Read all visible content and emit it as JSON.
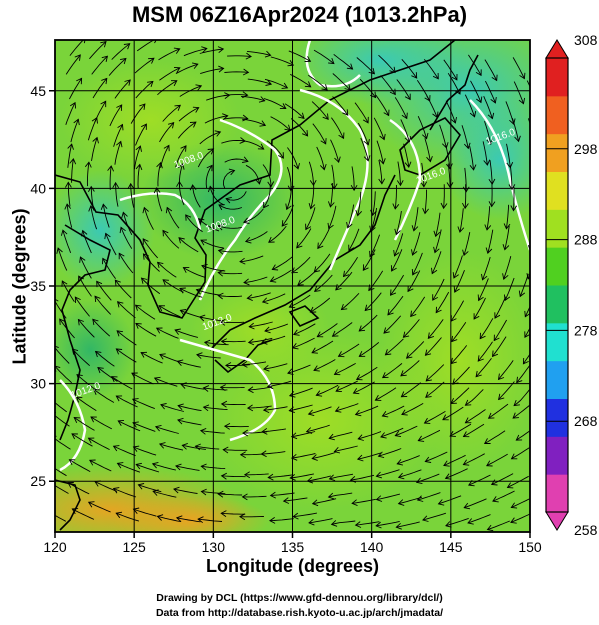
{
  "title": "MSM 06Z16Apr2024 (1013.2hPa)",
  "credits": {
    "line1": "Drawing by DCL (https://www.gfd-dennou.org/library/dcl/)",
    "line2": "Data from http://database.rish.kyoto-u.ac.jp/arch/jmadata/"
  },
  "chart_data": {
    "type": "heatmap",
    "xlabel": "Longitude (degrees)",
    "ylabel": "Latitude  (degrees)",
    "xlim": [
      120,
      150
    ],
    "ylim": [
      22.4,
      47.6
    ],
    "xticks": [
      120,
      125,
      130,
      135,
      140,
      145,
      150
    ],
    "yticks": [
      25,
      30,
      35,
      40,
      45
    ],
    "grid": true,
    "colorbar": {
      "min": 258,
      "max": 308,
      "ticks": [
        308,
        298,
        288,
        278,
        268,
        258
      ],
      "colors": [
        "#e040b0",
        "#8020c0",
        "#2030e0",
        "#20a0f0",
        "#20e0d0",
        "#20c060",
        "#50d020",
        "#a0e020",
        "#e0e020",
        "#f0a020",
        "#f06020",
        "#e02020"
      ]
    },
    "field_samples": [
      {
        "lon": 122,
        "lat": 24,
        "value": 300
      },
      {
        "lon": 128,
        "lat": 24,
        "value": 297
      },
      {
        "lon": 140,
        "lat": 25,
        "value": 293
      },
      {
        "lon": 148,
        "lat": 26,
        "value": 291
      },
      {
        "lon": 125,
        "lat": 30,
        "value": 290
      },
      {
        "lon": 135,
        "lat": 30,
        "value": 291
      },
      {
        "lon": 145,
        "lat": 30,
        "value": 291
      },
      {
        "lon": 122,
        "lat": 36,
        "value": 288
      },
      {
        "lon": 133,
        "lat": 35,
        "value": 291
      },
      {
        "lon": 145,
        "lat": 36,
        "value": 288
      },
      {
        "lon": 122,
        "lat": 40,
        "value": 285
      },
      {
        "lon": 130,
        "lat": 40,
        "value": 289
      },
      {
        "lon": 138,
        "lat": 41,
        "value": 287
      },
      {
        "lon": 146,
        "lat": 42,
        "value": 284
      },
      {
        "lon": 124,
        "lat": 46,
        "value": 287
      },
      {
        "lon": 135,
        "lat": 46,
        "value": 285
      },
      {
        "lon": 142,
        "lat": 46,
        "value": 282
      },
      {
        "lon": 148,
        "lat": 46,
        "value": 280
      }
    ],
    "isobar_labels": [
      {
        "lon": 128.5,
        "lat": 41.3,
        "text": "1008.0"
      },
      {
        "lon": 130.5,
        "lat": 38.0,
        "text": "1008.0"
      },
      {
        "lon": 130.3,
        "lat": 33.0,
        "text": "1012.0"
      },
      {
        "lon": 143.8,
        "lat": 40.5,
        "text": "1016.0"
      },
      {
        "lon": 148.2,
        "lat": 42.5,
        "text": "1016.0"
      },
      {
        "lon": 122.0,
        "lat": 29.5,
        "text": "1012.0"
      }
    ]
  }
}
